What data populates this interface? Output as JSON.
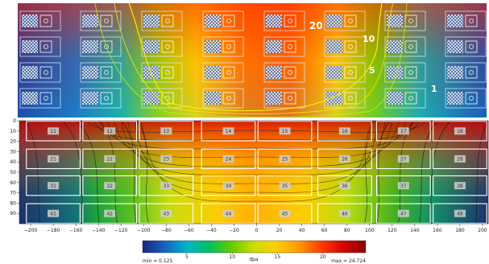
{
  "top_panel": {
    "contour_labels": [
      "20",
      "10",
      "5",
      "1"
    ]
  },
  "chart_data": {
    "type": "heatmap",
    "xlabel": "",
    "ylabel": "",
    "x_ticks": [
      -200,
      -180,
      -160,
      -140,
      -120,
      -100,
      -80,
      -60,
      -40,
      -20,
      0,
      20,
      40,
      60,
      80,
      100,
      120,
      140,
      160,
      180,
      200
    ],
    "y_ticks": [
      0,
      10,
      20,
      30,
      40,
      50,
      60,
      70,
      80,
      90
    ],
    "xlim": [
      -210,
      205
    ],
    "ylim": [
      0,
      100
    ],
    "cells": [
      {
        "id": "11",
        "x": -180,
        "y": 10
      },
      {
        "id": "12",
        "x": -130,
        "y": 10
      },
      {
        "id": "13",
        "x": -80,
        "y": 10
      },
      {
        "id": "14",
        "x": -25,
        "y": 10
      },
      {
        "id": "15",
        "x": 25,
        "y": 10
      },
      {
        "id": "16",
        "x": 78,
        "y": 10
      },
      {
        "id": "17",
        "x": 130,
        "y": 10
      },
      {
        "id": "18",
        "x": 180,
        "y": 10
      },
      {
        "id": "21",
        "x": -180,
        "y": 37
      },
      {
        "id": "22",
        "x": -130,
        "y": 37
      },
      {
        "id": "23",
        "x": -80,
        "y": 37
      },
      {
        "id": "24",
        "x": -25,
        "y": 37
      },
      {
        "id": "25",
        "x": 25,
        "y": 37
      },
      {
        "id": "26",
        "x": 78,
        "y": 37
      },
      {
        "id": "27",
        "x": 130,
        "y": 37
      },
      {
        "id": "28",
        "x": 180,
        "y": 37
      },
      {
        "id": "31",
        "x": -180,
        "y": 63
      },
      {
        "id": "32",
        "x": -130,
        "y": 63
      },
      {
        "id": "33",
        "x": -80,
        "y": 63
      },
      {
        "id": "34",
        "x": -25,
        "y": 63
      },
      {
        "id": "35",
        "x": 25,
        "y": 63
      },
      {
        "id": "36",
        "x": 78,
        "y": 63
      },
      {
        "id": "37",
        "x": 130,
        "y": 63
      },
      {
        "id": "38",
        "x": 180,
        "y": 63
      },
      {
        "id": "41",
        "x": -180,
        "y": 90
      },
      {
        "id": "42",
        "x": -130,
        "y": 90
      },
      {
        "id": "43",
        "x": -80,
        "y": 90
      },
      {
        "id": "44",
        "x": -25,
        "y": 90
      },
      {
        "id": "45",
        "x": 25,
        "y": 90
      },
      {
        "id": "46",
        "x": 78,
        "y": 90
      },
      {
        "id": "47",
        "x": 130,
        "y": 90
      },
      {
        "id": "48",
        "x": 180,
        "y": 90
      }
    ],
    "colorbar": {
      "label": "dpa",
      "ticks": [
        5,
        10,
        15,
        20
      ],
      "min": 0.125,
      "max": 24.724,
      "min_label": "min = 0.125",
      "max_label": "max = 24.724",
      "colors": [
        "#1a237e",
        "#1565c0",
        "#00b4c8",
        "#00c060",
        "#66cc00",
        "#ccdd00",
        "#ffd000",
        "#ff9800",
        "#ff3d00",
        "#d50000",
        "#8b0000"
      ]
    }
  }
}
